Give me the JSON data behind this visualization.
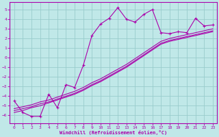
{
  "xlabel": "Windchill (Refroidissement éolien,°C)",
  "bg_color": "#c0e8e8",
  "line_color": "#aa00aa",
  "grid_color": "#99cccc",
  "x_data": [
    0,
    1,
    2,
    3,
    4,
    5,
    6,
    7,
    8,
    9,
    10,
    11,
    12,
    13,
    14,
    15,
    16,
    17,
    18,
    19,
    20,
    21,
    22,
    23
  ],
  "y_main": [
    -4.5,
    -5.7,
    -6.1,
    -6.1,
    -3.8,
    -5.2,
    -2.8,
    -3.1,
    -0.8,
    2.3,
    3.5,
    4.1,
    5.2,
    4.0,
    3.7,
    4.5,
    5.0,
    2.6,
    2.5,
    2.7,
    2.6,
    4.1,
    3.3,
    3.4
  ],
  "y_line1": [
    -5.5,
    -5.3,
    -5.1,
    -4.8,
    -4.6,
    -4.3,
    -4.0,
    -3.7,
    -3.3,
    -2.8,
    -2.4,
    -1.9,
    -1.4,
    -0.9,
    -0.3,
    0.3,
    0.9,
    1.5,
    1.8,
    2.0,
    2.2,
    2.4,
    2.6,
    2.8
  ],
  "y_line2": [
    -5.7,
    -5.5,
    -5.2,
    -5.0,
    -4.7,
    -4.4,
    -4.1,
    -3.8,
    -3.4,
    -2.9,
    -2.5,
    -2.0,
    -1.5,
    -1.0,
    -0.4,
    0.2,
    0.8,
    1.4,
    1.7,
    1.9,
    2.1,
    2.3,
    2.5,
    2.7
  ],
  "y_line3": [
    -5.3,
    -5.1,
    -4.9,
    -4.6,
    -4.4,
    -4.1,
    -3.8,
    -3.5,
    -3.1,
    -2.6,
    -2.2,
    -1.7,
    -1.2,
    -0.7,
    -0.1,
    0.5,
    1.1,
    1.7,
    2.0,
    2.2,
    2.4,
    2.6,
    2.8,
    3.0
  ],
  "ylim": [
    -6.8,
    5.8
  ],
  "xlim": [
    -0.5,
    23.5
  ],
  "yticks": [
    -6,
    -5,
    -4,
    -3,
    -2,
    -1,
    0,
    1,
    2,
    3,
    4,
    5
  ],
  "xticks": [
    0,
    1,
    2,
    3,
    4,
    5,
    6,
    7,
    8,
    9,
    10,
    11,
    12,
    13,
    14,
    15,
    16,
    17,
    18,
    19,
    20,
    21,
    22,
    23
  ]
}
